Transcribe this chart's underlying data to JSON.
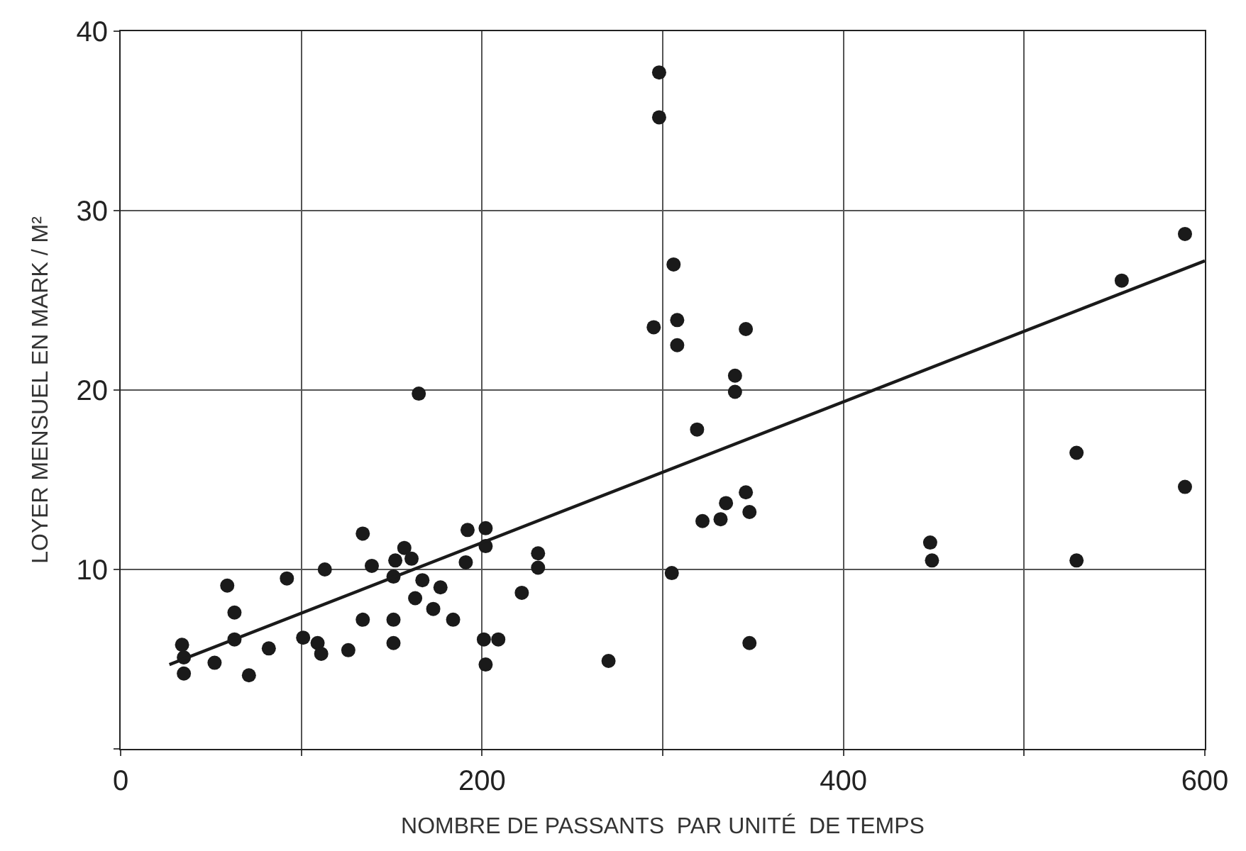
{
  "chart_data": {
    "type": "scatter",
    "xlabel": "NOMBRE DE PASSANTS  PAR UNITÉ  DE TEMPS",
    "ylabel": "LOYER MENSUEL EN MARK / M²",
    "xlim": [
      0,
      600
    ],
    "ylim": [
      0,
      40
    ],
    "xticks": [
      0,
      {
        "value": 100,
        "label": null
      },
      200,
      {
        "value": 300,
        "label": null
      },
      400,
      {
        "value": 500,
        "label": null
      },
      600
    ],
    "yticks": [
      {
        "value": 0,
        "label": null
      },
      10,
      20,
      30,
      40
    ],
    "grid": true,
    "marker": "circle",
    "series": [
      {
        "color": "#1a1a1a",
        "x": [
          34,
          35,
          35,
          52,
          59,
          63,
          63,
          71,
          82,
          92,
          101,
          109,
          111,
          113,
          126,
          134,
          134,
          139,
          151,
          151,
          151,
          152,
          157,
          161,
          163,
          165,
          167,
          173,
          177,
          184,
          191,
          192,
          202,
          202,
          201,
          202,
          209,
          222,
          231,
          231,
          270,
          295,
          298,
          298,
          306,
          308,
          308,
          305,
          319,
          322,
          332,
          335,
          340,
          340,
          346,
          346,
          348,
          348,
          448,
          449,
          529,
          529,
          554,
          589,
          589
        ],
        "values": [
          5.8,
          5.1,
          4.2,
          4.8,
          9.1,
          7.6,
          6.1,
          4.1,
          5.6,
          9.5,
          6.2,
          5.9,
          5.3,
          10.0,
          5.5,
          12.0,
          7.2,
          10.2,
          9.6,
          7.2,
          5.9,
          10.5,
          11.2,
          10.6,
          8.4,
          19.8,
          9.4,
          7.8,
          9.0,
          7.2,
          10.4,
          12.2,
          12.3,
          11.3,
          6.1,
          4.7,
          6.1,
          8.7,
          10.9,
          10.1,
          4.9,
          23.5,
          37.7,
          35.2,
          27.0,
          23.9,
          22.5,
          9.8,
          17.8,
          12.7,
          12.8,
          13.7,
          20.8,
          19.9,
          23.4,
          14.3,
          13.2,
          5.9,
          11.5,
          10.5,
          16.5,
          10.5,
          26.1,
          28.7,
          14.6
        ]
      },
      {
        "type": "line",
        "color": "#1a1a1a",
        "marker": "none",
        "line_style": "solid",
        "x": [
          27,
          600
        ],
        "values": [
          4.7,
          27.2
        ]
      }
    ]
  }
}
